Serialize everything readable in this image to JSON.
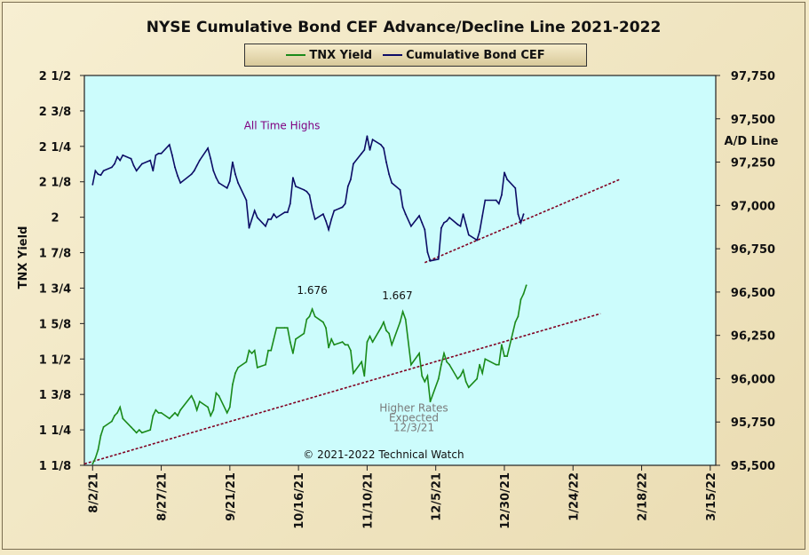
{
  "title": "NYSE Cumulative  Bond CEF Advance/Decline Line 2021-2022",
  "colors": {
    "tnx": "#1a8a1a",
    "cef": "#0d0d66",
    "plot_bg": "#ccfcfc",
    "trend": "#800020",
    "highs_label": "#800080",
    "rates_label": "#7a7a7a"
  },
  "legend": [
    "TNX Yield",
    "Cumulative Bond CEF"
  ],
  "chart_data": {
    "type": "line",
    "title": "NYSE Cumulative  Bond CEF Advance/Decline Line 2021-2022",
    "left_axis": {
      "label": "TNX Yield",
      "range": [
        1.125,
        2.5
      ],
      "tick_labels": [
        "2 1/2",
        "2 3/8",
        "2 1/4",
        "2 1/8",
        "2",
        "1 7/8",
        "1 3/4",
        "1 5/8",
        "1 1/2",
        "1 3/8",
        "1 1/4",
        "1 1/8"
      ]
    },
    "right_axis": {
      "label": "A/D Line",
      "range": [
        95500,
        97750
      ],
      "tick_labels": [
        "97,750",
        "97,500",
        "97,250",
        "97,000",
        "96,750",
        "96,500",
        "96,250",
        "96,000",
        "95,750",
        "95,500"
      ]
    },
    "x_axis": {
      "tick_labels": [
        "8/2/21",
        "8/27/21",
        "9/21/21",
        "10/16/21",
        "11/10/21",
        "12/5/21",
        "12/30/21",
        "1/24/22",
        "2/18/22",
        "3/15/22"
      ]
    },
    "series": [
      {
        "name": "TNX Yield",
        "axis": "left",
        "points": [
          [
            "8/2/21",
            1.13
          ],
          [
            "8/3/21",
            1.15
          ],
          [
            "8/4/21",
            1.18
          ],
          [
            "8/5/21",
            1.23
          ],
          [
            "8/6/21",
            1.26
          ],
          [
            "8/9/21",
            1.28
          ],
          [
            "8/10/21",
            1.3
          ],
          [
            "8/11/21",
            1.31
          ],
          [
            "8/12/21",
            1.33
          ],
          [
            "8/13/21",
            1.29
          ],
          [
            "8/16/21",
            1.26
          ],
          [
            "8/17/21",
            1.25
          ],
          [
            "8/18/21",
            1.24
          ],
          [
            "8/19/21",
            1.25
          ],
          [
            "8/20/21",
            1.24
          ],
          [
            "8/23/21",
            1.25
          ],
          [
            "8/24/21",
            1.3
          ],
          [
            "8/25/21",
            1.32
          ],
          [
            "8/26/21",
            1.31
          ],
          [
            "8/27/21",
            1.31
          ],
          [
            "8/30/21",
            1.29
          ],
          [
            "8/31/21",
            1.3
          ],
          [
            "9/1/21",
            1.31
          ],
          [
            "9/2/21",
            1.3
          ],
          [
            "9/3/21",
            1.32
          ],
          [
            "9/7/21",
            1.37
          ],
          [
            "9/8/21",
            1.35
          ],
          [
            "9/9/21",
            1.32
          ],
          [
            "9/10/21",
            1.35
          ],
          [
            "9/13/21",
            1.33
          ],
          [
            "9/14/21",
            1.3
          ],
          [
            "9/15/21",
            1.32
          ],
          [
            "9/16/21",
            1.38
          ],
          [
            "9/17/21",
            1.37
          ],
          [
            "9/20/21",
            1.31
          ],
          [
            "9/21/21",
            1.33
          ],
          [
            "9/22/21",
            1.41
          ],
          [
            "9/23/21",
            1.45
          ],
          [
            "9/24/21",
            1.47
          ],
          [
            "9/27/21",
            1.49
          ],
          [
            "9/28/21",
            1.53
          ],
          [
            "9/29/21",
            1.52
          ],
          [
            "9/30/21",
            1.53
          ],
          [
            "10/1/21",
            1.47
          ],
          [
            "10/4/21",
            1.48
          ],
          [
            "10/5/21",
            1.53
          ],
          [
            "10/6/21",
            1.53
          ],
          [
            "10/7/21",
            1.57
          ],
          [
            "10/8/21",
            1.61
          ],
          [
            "10/11/21",
            1.61
          ],
          [
            "10/12/21",
            1.61
          ],
          [
            "10/13/21",
            1.56
          ],
          [
            "10/14/21",
            1.52
          ],
          [
            "10/15/21",
            1.57
          ],
          [
            "10/18/21",
            1.59
          ],
          [
            "10/19/21",
            1.64
          ],
          [
            "10/20/21",
            1.65
          ],
          [
            "10/21/21",
            1.676
          ],
          [
            "10/22/21",
            1.65
          ],
          [
            "10/25/21",
            1.63
          ],
          [
            "10/26/21",
            1.61
          ],
          [
            "10/27/21",
            1.54
          ],
          [
            "10/28/21",
            1.57
          ],
          [
            "10/29/21",
            1.55
          ],
          [
            "11/1/21",
            1.56
          ],
          [
            "11/2/21",
            1.55
          ],
          [
            "11/3/21",
            1.55
          ],
          [
            "11/4/21",
            1.53
          ],
          [
            "11/5/21",
            1.45
          ],
          [
            "11/8/21",
            1.49
          ],
          [
            "11/9/21",
            1.44
          ],
          [
            "11/10/21",
            1.56
          ],
          [
            "11/11/21",
            1.58
          ],
          [
            "11/12/21",
            1.56
          ],
          [
            "11/15/21",
            1.61
          ],
          [
            "11/16/21",
            1.63
          ],
          [
            "11/17/21",
            1.6
          ],
          [
            "11/18/21",
            1.59
          ],
          [
            "11/19/21",
            1.55
          ],
          [
            "11/22/21",
            1.63
          ],
          [
            "11/23/21",
            1.667
          ],
          [
            "11/24/21",
            1.64
          ],
          [
            "11/26/21",
            1.48
          ],
          [
            "11/29/21",
            1.52
          ],
          [
            "11/30/21",
            1.44
          ],
          [
            "12/1/21",
            1.42
          ],
          [
            "12/2/21",
            1.44
          ],
          [
            "12/3/21",
            1.35
          ],
          [
            "12/6/21",
            1.43
          ],
          [
            "12/7/21",
            1.48
          ],
          [
            "12/8/21",
            1.52
          ],
          [
            "12/9/21",
            1.49
          ],
          [
            "12/10/21",
            1.48
          ],
          [
            "12/13/21",
            1.43
          ],
          [
            "12/14/21",
            1.44
          ],
          [
            "12/15/21",
            1.46
          ],
          [
            "12/16/21",
            1.42
          ],
          [
            "12/17/21",
            1.4
          ],
          [
            "12/20/21",
            1.43
          ],
          [
            "12/21/21",
            1.48
          ],
          [
            "12/22/21",
            1.45
          ],
          [
            "12/23/21",
            1.5
          ],
          [
            "12/27/21",
            1.48
          ],
          [
            "12/28/21",
            1.48
          ],
          [
            "12/29/21",
            1.55
          ],
          [
            "12/30/21",
            1.51
          ],
          [
            "12/31/21",
            1.51
          ],
          [
            "1/3/22",
            1.63
          ],
          [
            "1/4/22",
            1.65
          ],
          [
            "1/5/22",
            1.71
          ],
          [
            "1/6/22",
            1.73
          ],
          [
            "1/7/22",
            1.76
          ]
        ]
      },
      {
        "name": "Cumulative Bond CEF",
        "axis": "right",
        "points": [
          [
            "8/2/21",
            97120
          ],
          [
            "8/3/21",
            97200
          ],
          [
            "8/4/21",
            97180
          ],
          [
            "8/5/21",
            97175
          ],
          [
            "8/6/21",
            97200
          ],
          [
            "8/9/21",
            97220
          ],
          [
            "8/10/21",
            97240
          ],
          [
            "8/11/21",
            97280
          ],
          [
            "8/12/21",
            97260
          ],
          [
            "8/13/21",
            97290
          ],
          [
            "8/16/21",
            97270
          ],
          [
            "8/17/21",
            97230
          ],
          [
            "8/18/21",
            97200
          ],
          [
            "8/19/21",
            97220
          ],
          [
            "8/20/21",
            97240
          ],
          [
            "8/23/21",
            97260
          ],
          [
            "8/24/21",
            97200
          ],
          [
            "8/25/21",
            97290
          ],
          [
            "8/26/21",
            97300
          ],
          [
            "8/27/21",
            97300
          ],
          [
            "8/30/21",
            97350
          ],
          [
            "8/31/21",
            97290
          ],
          [
            "9/1/21",
            97220
          ],
          [
            "9/2/21",
            97170
          ],
          [
            "9/3/21",
            97130
          ],
          [
            "9/7/21",
            97180
          ],
          [
            "9/8/21",
            97200
          ],
          [
            "9/9/21",
            97230
          ],
          [
            "9/10/21",
            97260
          ],
          [
            "9/13/21",
            97330
          ],
          [
            "9/14/21",
            97270
          ],
          [
            "9/15/21",
            97200
          ],
          [
            "9/16/21",
            97160
          ],
          [
            "9/17/21",
            97130
          ],
          [
            "9/20/21",
            97100
          ],
          [
            "9/21/21",
            97140
          ],
          [
            "9/22/21",
            97250
          ],
          [
            "9/23/21",
            97180
          ],
          [
            "9/24/21",
            97130
          ],
          [
            "9/27/21",
            97030
          ],
          [
            "9/28/21",
            96870
          ],
          [
            "9/29/21",
            96920
          ],
          [
            "9/30/21",
            96970
          ],
          [
            "10/1/21",
            96930
          ],
          [
            "10/4/21",
            96880
          ],
          [
            "10/5/21",
            96920
          ],
          [
            "10/6/21",
            96920
          ],
          [
            "10/7/21",
            96950
          ],
          [
            "10/8/21",
            96930
          ],
          [
            "10/11/21",
            96960
          ],
          [
            "10/12/21",
            96960
          ],
          [
            "10/13/21",
            97010
          ],
          [
            "10/14/21",
            97160
          ],
          [
            "10/15/21",
            97110
          ],
          [
            "10/18/21",
            97090
          ],
          [
            "10/19/21",
            97080
          ],
          [
            "10/20/21",
            97060
          ],
          [
            "10/21/21",
            96980
          ],
          [
            "10/22/21",
            96920
          ],
          [
            "10/25/21",
            96950
          ],
          [
            "10/26/21",
            96910
          ],
          [
            "10/27/21",
            96860
          ],
          [
            "10/28/21",
            96920
          ],
          [
            "10/29/21",
            96970
          ],
          [
            "11/1/21",
            96990
          ],
          [
            "11/2/21",
            97010
          ],
          [
            "11/3/21",
            97110
          ],
          [
            "11/4/21",
            97150
          ],
          [
            "11/5/21",
            97240
          ],
          [
            "11/8/21",
            97300
          ],
          [
            "11/9/21",
            97320
          ],
          [
            "11/10/21",
            97400
          ],
          [
            "11/11/21",
            97320
          ],
          [
            "11/12/21",
            97380
          ],
          [
            "11/15/21",
            97350
          ],
          [
            "11/16/21",
            97330
          ],
          [
            "11/17/21",
            97250
          ],
          [
            "11/18/21",
            97180
          ],
          [
            "11/19/21",
            97130
          ],
          [
            "11/22/21",
            97090
          ],
          [
            "11/23/21",
            96990
          ],
          [
            "11/24/21",
            96950
          ],
          [
            "11/26/21",
            96880
          ],
          [
            "11/29/21",
            96940
          ],
          [
            "11/30/21",
            96900
          ],
          [
            "12/1/21",
            96860
          ],
          [
            "12/2/21",
            96730
          ],
          [
            "12/3/21",
            96680
          ],
          [
            "12/6/21",
            96690
          ],
          [
            "12/7/21",
            96870
          ],
          [
            "12/8/21",
            96900
          ],
          [
            "12/9/21",
            96910
          ],
          [
            "12/10/21",
            96930
          ],
          [
            "12/13/21",
            96890
          ],
          [
            "12/14/21",
            96880
          ],
          [
            "12/15/21",
            96950
          ],
          [
            "12/16/21",
            96890
          ],
          [
            "12/17/21",
            96830
          ],
          [
            "12/20/21",
            96800
          ],
          [
            "12/21/21",
            96850
          ],
          [
            "12/22/21",
            96940
          ],
          [
            "12/23/21",
            97030
          ],
          [
            "12/27/21",
            97030
          ],
          [
            "12/28/21",
            97010
          ],
          [
            "12/29/21",
            97060
          ],
          [
            "12/30/21",
            97190
          ],
          [
            "12/31/21",
            97150
          ],
          [
            "1/3/22",
            97100
          ],
          [
            "1/4/22",
            96950
          ],
          [
            "1/5/22",
            96900
          ],
          [
            "1/6/22",
            96950
          ]
        ]
      }
    ],
    "trendlines": [
      {
        "axis": "right",
        "from": [
          "12/1/21",
          96670
        ],
        "to": [
          "2/10/22",
          97150
        ]
      },
      {
        "axis": "left",
        "from": [
          "7/30/21",
          1.13
        ],
        "to": [
          "2/3/22",
          1.66
        ]
      }
    ],
    "annotations": [
      {
        "text": "All Time Highs",
        "at": [
          "10/10/21",
          97440
        ],
        "axis": "right",
        "color_key": "highs_label"
      },
      {
        "text": "1.676",
        "at": [
          "10/21/21",
          1.73
        ],
        "axis": "left",
        "color_key": "label"
      },
      {
        "text": "1.667",
        "at": [
          "11/21/21",
          1.71
        ],
        "axis": "left",
        "color_key": "label"
      },
      {
        "text": "Higher Rates",
        "at": [
          "11/27/21",
          1.315
        ],
        "axis": "left",
        "color_key": "rates_label"
      },
      {
        "text": "Expected",
        "at": [
          "11/27/21",
          1.28
        ],
        "axis": "left",
        "color_key": "rates_label"
      },
      {
        "text": "12/3/21",
        "at": [
          "11/27/21",
          1.245
        ],
        "axis": "left",
        "color_key": "rates_label"
      },
      {
        "text": "© 2021-2022  Technical Watch",
        "at": [
          "11/16/21",
          1.15
        ],
        "axis": "left",
        "color_key": "label"
      }
    ],
    "grid": false,
    "legend_position": "top-center"
  }
}
